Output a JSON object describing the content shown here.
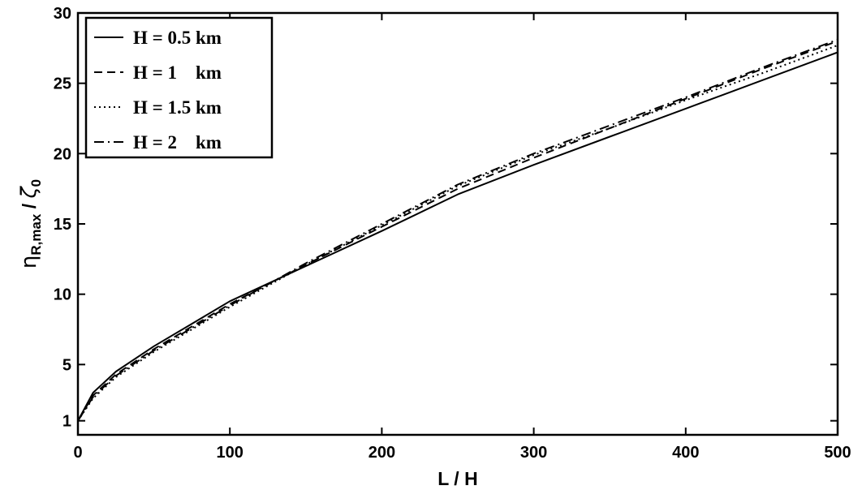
{
  "chart_data": {
    "type": "line",
    "title": "",
    "xlabel": "L / H",
    "ylabel": {
      "main": "η",
      "sub": "R,max",
      "slash": " / ",
      "main2": "ζ",
      "sub2": "0"
    },
    "xlim": [
      0,
      500
    ],
    "ylim": [
      0,
      30
    ],
    "xticks": [
      0,
      100,
      200,
      300,
      400,
      500
    ],
    "yticks": [
      1,
      5,
      10,
      15,
      20,
      25,
      30
    ],
    "grid": false,
    "legend_position": "top-left",
    "series": [
      {
        "name": "H = 0.5 km",
        "dash": "solid",
        "x": [
          0,
          10,
          25,
          50,
          75,
          100,
          150,
          200,
          250,
          300,
          350,
          400,
          450,
          500
        ],
        "y": [
          1.0,
          3.0,
          4.5,
          6.3,
          7.9,
          9.5,
          12.0,
          14.5,
          17.1,
          19.2,
          21.2,
          23.2,
          25.2,
          27.2
        ]
      },
      {
        "name": "H = 1    km",
        "dash": "dashed",
        "x": [
          0,
          10,
          25,
          50,
          75,
          100,
          150,
          200,
          250,
          300,
          350,
          400,
          450,
          500
        ],
        "y": [
          1.0,
          2.8,
          4.3,
          6.1,
          7.7,
          9.3,
          12.1,
          14.8,
          17.5,
          19.7,
          21.8,
          23.9,
          26.0,
          28.0
        ]
      },
      {
        "name": "H = 1.5 km",
        "dash": "dotted",
        "x": [
          0,
          10,
          25,
          50,
          75,
          100,
          150,
          200,
          250,
          300,
          350,
          400,
          450,
          500
        ],
        "y": [
          1.0,
          2.6,
          4.1,
          5.9,
          7.5,
          9.1,
          12.1,
          14.9,
          17.7,
          19.9,
          21.8,
          23.8,
          25.7,
          27.7
        ]
      },
      {
        "name": "H = 2    km",
        "dash": "dashdot",
        "x": [
          0,
          10,
          25,
          50,
          75,
          100,
          150,
          200,
          250,
          300,
          350,
          400,
          450,
          500
        ],
        "y": [
          1.0,
          2.7,
          4.2,
          6.0,
          7.6,
          9.2,
          12.2,
          15.0,
          17.8,
          20.0,
          22.0,
          24.0,
          26.1,
          28.1
        ]
      }
    ]
  }
}
